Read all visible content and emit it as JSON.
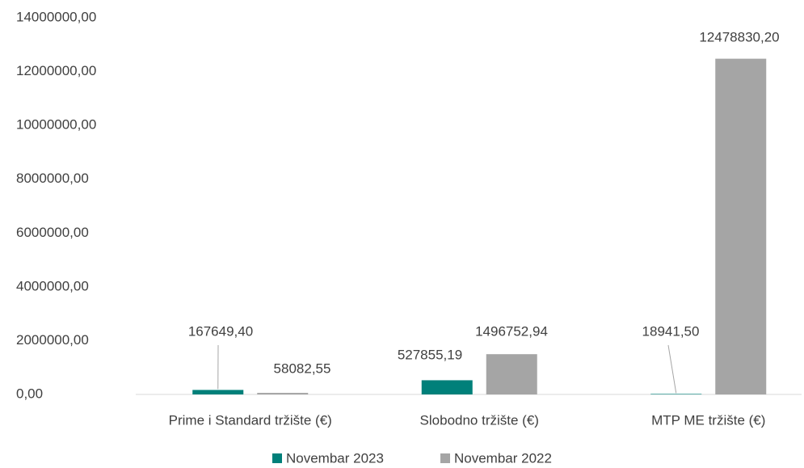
{
  "chart_data": {
    "type": "bar",
    "categories": [
      "Prime i Standard tržište (€)",
      "Slobodno tržište (€)",
      "MTP ME tržište (€)"
    ],
    "series": [
      {
        "name": "Novembar 2023",
        "color": "#00807a",
        "values": [
          167649.4,
          527855.19,
          18941.5
        ],
        "value_labels": [
          "167649,40",
          "527855,19",
          "18941,50"
        ]
      },
      {
        "name": "Novembar 2022",
        "color": "#a5a5a5",
        "values": [
          58082.55,
          1496752.94,
          12478830.2
        ],
        "value_labels": [
          "58082,55",
          "1496752,94",
          "12478830,20"
        ]
      }
    ],
    "ylim": [
      0,
      14000000
    ],
    "yticks": [
      {
        "value": 0,
        "label": "0,00"
      },
      {
        "value": 2000000,
        "label": "2000000,00"
      },
      {
        "value": 4000000,
        "label": "4000000,00"
      },
      {
        "value": 6000000,
        "label": "6000000,00"
      },
      {
        "value": 8000000,
        "label": "8000000,00"
      },
      {
        "value": 10000000,
        "label": "10000000,00"
      },
      {
        "value": 12000000,
        "label": "12000000,00"
      },
      {
        "value": 14000000,
        "label": "14000000,00"
      }
    ],
    "grid": false,
    "legend": "bottom"
  }
}
